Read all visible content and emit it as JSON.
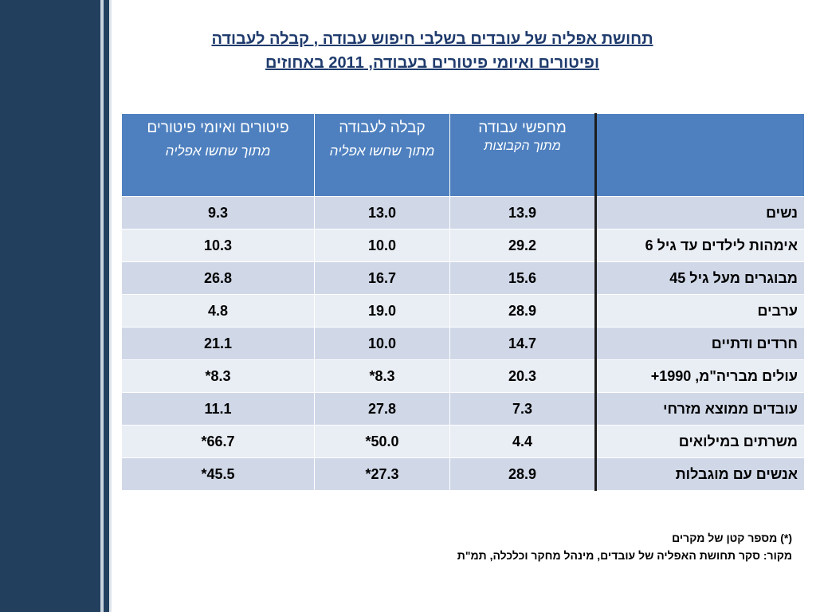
{
  "title": {
    "line1": "תחושת אפליה של עובדים בשלבי חיפוש עבודה , קבלה לעבודה ",
    "line2": "ופיטורים ואיומי פיטורים בעבודה, 2011 באחוזים"
  },
  "table": {
    "headers": [
      {
        "main": "",
        "sub": ""
      },
      {
        "main": "מחפשי עבודה",
        "sub": "מתוך הקבוצות"
      },
      {
        "main": "קבלה לעבודה",
        "sub": "מתוך שחשו אפליה"
      },
      {
        "main": "פיטורים ואיומי פיטורים",
        "sub": "מתוך שחשו אפליה"
      }
    ],
    "rows": [
      {
        "label": "נשים",
        "job_seekers": "13.9",
        "hiring": "13.0",
        "dismissal": "9.3"
      },
      {
        "label": "אימהות לילדים עד גיל 6",
        "job_seekers": "29.2",
        "hiring": "10.0",
        "dismissal": "10.3"
      },
      {
        "label": "מבוגרים מעל גיל 45",
        "job_seekers": "15.6",
        "hiring": "16.7",
        "dismissal": "26.8"
      },
      {
        "label": "ערבים",
        "job_seekers": "28.9",
        "hiring": "19.0",
        "dismissal": "4.8"
      },
      {
        "label": "חרדים ודתיים",
        "job_seekers": "14.7",
        "hiring": "10.0",
        "dismissal": "21.1"
      },
      {
        "label": "עולים מבריה\"מ, 1990+",
        "job_seekers": "20.3",
        "hiring": "8.3*",
        "dismissal": "8.3*"
      },
      {
        "label": "עובדים ממוצא מזרחי",
        "job_seekers": "7.3",
        "hiring": "27.8",
        "dismissal": "11.1"
      },
      {
        "label": "משרתים במילואים",
        "job_seekers": "4.4",
        "hiring": "50.0*",
        "dismissal": "66.7*"
      },
      {
        "label": "אנשים עם מוגבלות",
        "job_seekers": "28.9",
        "hiring": "27.3*",
        "dismissal": "45.5*"
      }
    ]
  },
  "footnotes": {
    "small_sample": "(*) מספר קטן של מקרים",
    "source": "מקור: סקר תחושת האפליה של עובדים, מינהל מחקר וכלכלה, תמ\"ת"
  },
  "colors": {
    "sidebar": "#22405e",
    "header_bg": "#4e80bf",
    "row_odd": "#d0d8e8",
    "row_even": "#e9edf4",
    "title": "#1f3b6d"
  }
}
